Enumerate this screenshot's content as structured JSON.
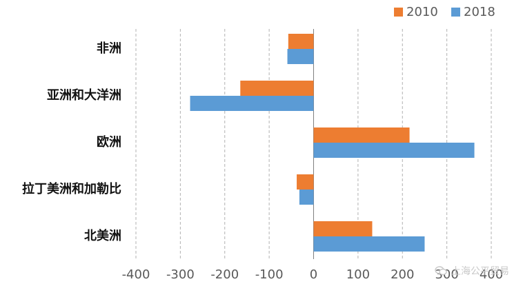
{
  "chart_data": {
    "type": "bar",
    "orientation": "horizontal",
    "categories": [
      "非洲",
      "亚洲和大洋洲",
      "欧洲",
      "拉丁美洲和加勒比",
      "北美洲"
    ],
    "series": [
      {
        "name": "2010",
        "color": "#ED7D31",
        "values": [
          -57,
          -165,
          216,
          -38,
          132
        ]
      },
      {
        "name": "2018",
        "color": "#5B9BD5",
        "values": [
          -59,
          -278,
          362,
          -32,
          250
        ]
      }
    ],
    "xlim": [
      -400,
      400
    ],
    "xticks": [
      -400,
      -300,
      -200,
      -100,
      0,
      100,
      200,
      300,
      400
    ],
    "xtick_labels": [
      "-400",
      "-300",
      "-200",
      "-100",
      "0",
      "100",
      "200",
      "300",
      "400"
    ],
    "grid": "vertical dashed",
    "legend_position": "top-right"
  },
  "watermark": {
    "text": "上海公平贸易",
    "icon": "wechat-icon"
  }
}
